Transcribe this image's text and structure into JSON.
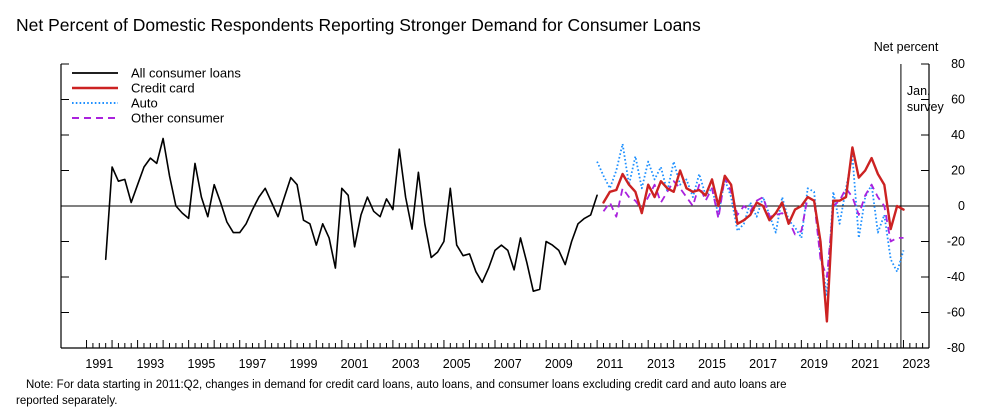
{
  "chart_data": {
    "type": "line",
    "title": "Net Percent of Domestic Respondents Reporting Stronger Demand for Consumer Loans",
    "ylabel": "Net percent",
    "ylim": [
      -80,
      80
    ],
    "yticks": [
      -80,
      -60,
      -40,
      -20,
      0,
      20,
      40,
      60,
      80
    ],
    "xlim": [
      1990,
      2024
    ],
    "xticks": [
      "1991",
      "1993",
      "1995",
      "1997",
      "1999",
      "2001",
      "2003",
      "2005",
      "2007",
      "2009",
      "2011",
      "2013",
      "2015",
      "2017",
      "2019",
      "2021",
      "2023"
    ],
    "grid": false,
    "legend_position": "top-left",
    "vline": {
      "x": 2022.9,
      "label_lines": [
        "Jan.",
        "survey"
      ]
    },
    "note_lines": [
      "Note: For data starting in 2011:Q2, changes in demand for credit card loans, auto loans, and consumer loans excluding credit card and auto loans are",
      "reported separately."
    ],
    "colors": {
      "all": "#000000",
      "credit": "#cc2222",
      "auto": "#1e90ff",
      "other": "#aa22dd"
    },
    "series": [
      {
        "name": "All consumer loans",
        "key": "all",
        "style": "solid",
        "x": [
          1991.75,
          1992.0,
          1992.25,
          1992.5,
          1992.75,
          1993.0,
          1993.25,
          1993.5,
          1993.75,
          1994.0,
          1994.25,
          1994.5,
          1994.75,
          1995.0,
          1995.25,
          1995.5,
          1995.75,
          1996.0,
          1996.25,
          1996.5,
          1996.75,
          1997.0,
          1997.25,
          1997.5,
          1997.75,
          1998.0,
          1998.25,
          1998.5,
          1998.75,
          1999.0,
          1999.25,
          1999.5,
          1999.75,
          2000.0,
          2000.25,
          2000.5,
          2000.75,
          2001.0,
          2001.25,
          2001.5,
          2001.75,
          2002.0,
          2002.25,
          2002.5,
          2002.75,
          2003.0,
          2003.25,
          2003.5,
          2003.75,
          2004.0,
          2004.25,
          2004.5,
          2004.75,
          2005.0,
          2005.25,
          2005.5,
          2005.75,
          2006.0,
          2006.25,
          2006.5,
          2006.75,
          2007.0,
          2007.25,
          2007.5,
          2007.75,
          2008.0,
          2008.25,
          2008.5,
          2008.75,
          2009.0,
          2009.25,
          2009.5,
          2009.75,
          2010.0,
          2010.25,
          2010.5,
          2010.75,
          2011.0
        ],
        "y": [
          -30,
          22,
          14,
          15,
          2,
          12,
          22,
          27,
          24,
          38,
          17,
          0,
          -4,
          -7,
          24,
          5,
          -6,
          12,
          2,
          -9,
          -15,
          -15,
          -10,
          -2,
          5,
          10,
          2,
          -6,
          5,
          16,
          12,
          -8,
          -10,
          -22,
          -10,
          -18,
          -35,
          10,
          6,
          -23,
          -5,
          5,
          -3,
          -6,
          4,
          -2,
          32,
          5,
          -13,
          19,
          -10,
          -29,
          -26,
          -20,
          10,
          -22,
          -28,
          -27,
          -37,
          -43,
          -35,
          -25,
          -22,
          -25,
          -36,
          -18,
          -32,
          -48,
          -47,
          -20,
          -22,
          -25,
          -33,
          -20,
          -10,
          -7,
          -5,
          6
        ]
      },
      {
        "name": "Credit card",
        "key": "credit",
        "style": "solid",
        "x": [
          2011.25,
          2011.5,
          2011.75,
          2012.0,
          2012.25,
          2012.5,
          2012.75,
          2013.0,
          2013.25,
          2013.5,
          2013.75,
          2014.0,
          2014.25,
          2014.5,
          2014.75,
          2015.0,
          2015.25,
          2015.5,
          2015.75,
          2016.0,
          2016.25,
          2016.5,
          2016.75,
          2017.0,
          2017.25,
          2017.5,
          2017.75,
          2018.0,
          2018.25,
          2018.5,
          2018.75,
          2019.0,
          2019.25,
          2019.5,
          2019.75,
          2020.0,
          2020.25,
          2020.5,
          2020.75,
          2021.0,
          2021.25,
          2021.5,
          2021.75,
          2022.0,
          2022.25,
          2022.5,
          2022.75,
          2023.0
        ],
        "y": [
          2,
          8,
          9,
          18,
          12,
          8,
          -4,
          12,
          5,
          14,
          10,
          8,
          20,
          10,
          8,
          9,
          6,
          15,
          0,
          17,
          12,
          -10,
          -8,
          -5,
          2,
          0,
          -8,
          -4,
          2,
          -10,
          -2,
          0,
          5,
          3,
          -20,
          -65,
          3,
          3,
          5,
          33,
          16,
          20,
          27,
          18,
          12,
          -13,
          0,
          -2
        ]
      },
      {
        "name": "Auto",
        "key": "auto",
        "style": "dotted",
        "x": [
          2011.0,
          2011.25,
          2011.5,
          2011.75,
          2012.0,
          2012.25,
          2012.5,
          2012.75,
          2013.0,
          2013.25,
          2013.5,
          2013.75,
          2014.0,
          2014.25,
          2014.5,
          2014.75,
          2015.0,
          2015.25,
          2015.5,
          2015.75,
          2016.0,
          2016.25,
          2016.5,
          2016.75,
          2017.0,
          2017.25,
          2017.5,
          2017.75,
          2018.0,
          2018.25,
          2018.5,
          2018.75,
          2019.0,
          2019.25,
          2019.5,
          2019.75,
          2020.0,
          2020.25,
          2020.5,
          2020.75,
          2021.0,
          2021.25,
          2021.5,
          2021.75,
          2022.0,
          2022.25,
          2022.5,
          2022.75,
          2023.0
        ],
        "y": [
          25,
          17,
          10,
          20,
          35,
          12,
          28,
          10,
          25,
          15,
          22,
          8,
          25,
          12,
          15,
          5,
          18,
          6,
          10,
          -5,
          15,
          5,
          -14,
          -10,
          2,
          -6,
          5,
          -5,
          -15,
          5,
          -8,
          -12,
          -18,
          10,
          8,
          -28,
          -50,
          8,
          -10,
          10,
          28,
          -18,
          5,
          12,
          -15,
          -5,
          -30,
          -37,
          -25
        ]
      },
      {
        "name": "Other consumer",
        "key": "other",
        "style": "dashed",
        "x": [
          2011.25,
          2011.5,
          2011.75,
          2012.0,
          2012.25,
          2012.5,
          2012.75,
          2013.0,
          2013.25,
          2013.5,
          2013.75,
          2014.0,
          2014.25,
          2014.5,
          2014.75,
          2015.0,
          2015.25,
          2015.5,
          2015.75,
          2016.0,
          2016.25,
          2016.5,
          2016.75,
          2017.0,
          2017.25,
          2017.5,
          2017.75,
          2018.0,
          2018.25,
          2018.5,
          2018.75,
          2019.0,
          2019.25,
          2019.5,
          2019.75,
          2020.0,
          2020.25,
          2020.5,
          2020.75,
          2021.0,
          2021.25,
          2021.5,
          2021.75,
          2022.0,
          2022.25,
          2022.5,
          2022.75,
          2023.0
        ],
        "y": [
          -3,
          2,
          -6,
          10,
          5,
          3,
          -2,
          5,
          12,
          2,
          8,
          14,
          10,
          5,
          0,
          12,
          3,
          10,
          -7,
          16,
          8,
          -5,
          0,
          -3,
          3,
          5,
          -6,
          -5,
          -4,
          -8,
          -16,
          -14,
          5,
          3,
          -30,
          -40,
          0,
          3,
          10,
          5,
          -5,
          6,
          12,
          5,
          0,
          -20,
          -18,
          -18
        ]
      }
    ]
  }
}
